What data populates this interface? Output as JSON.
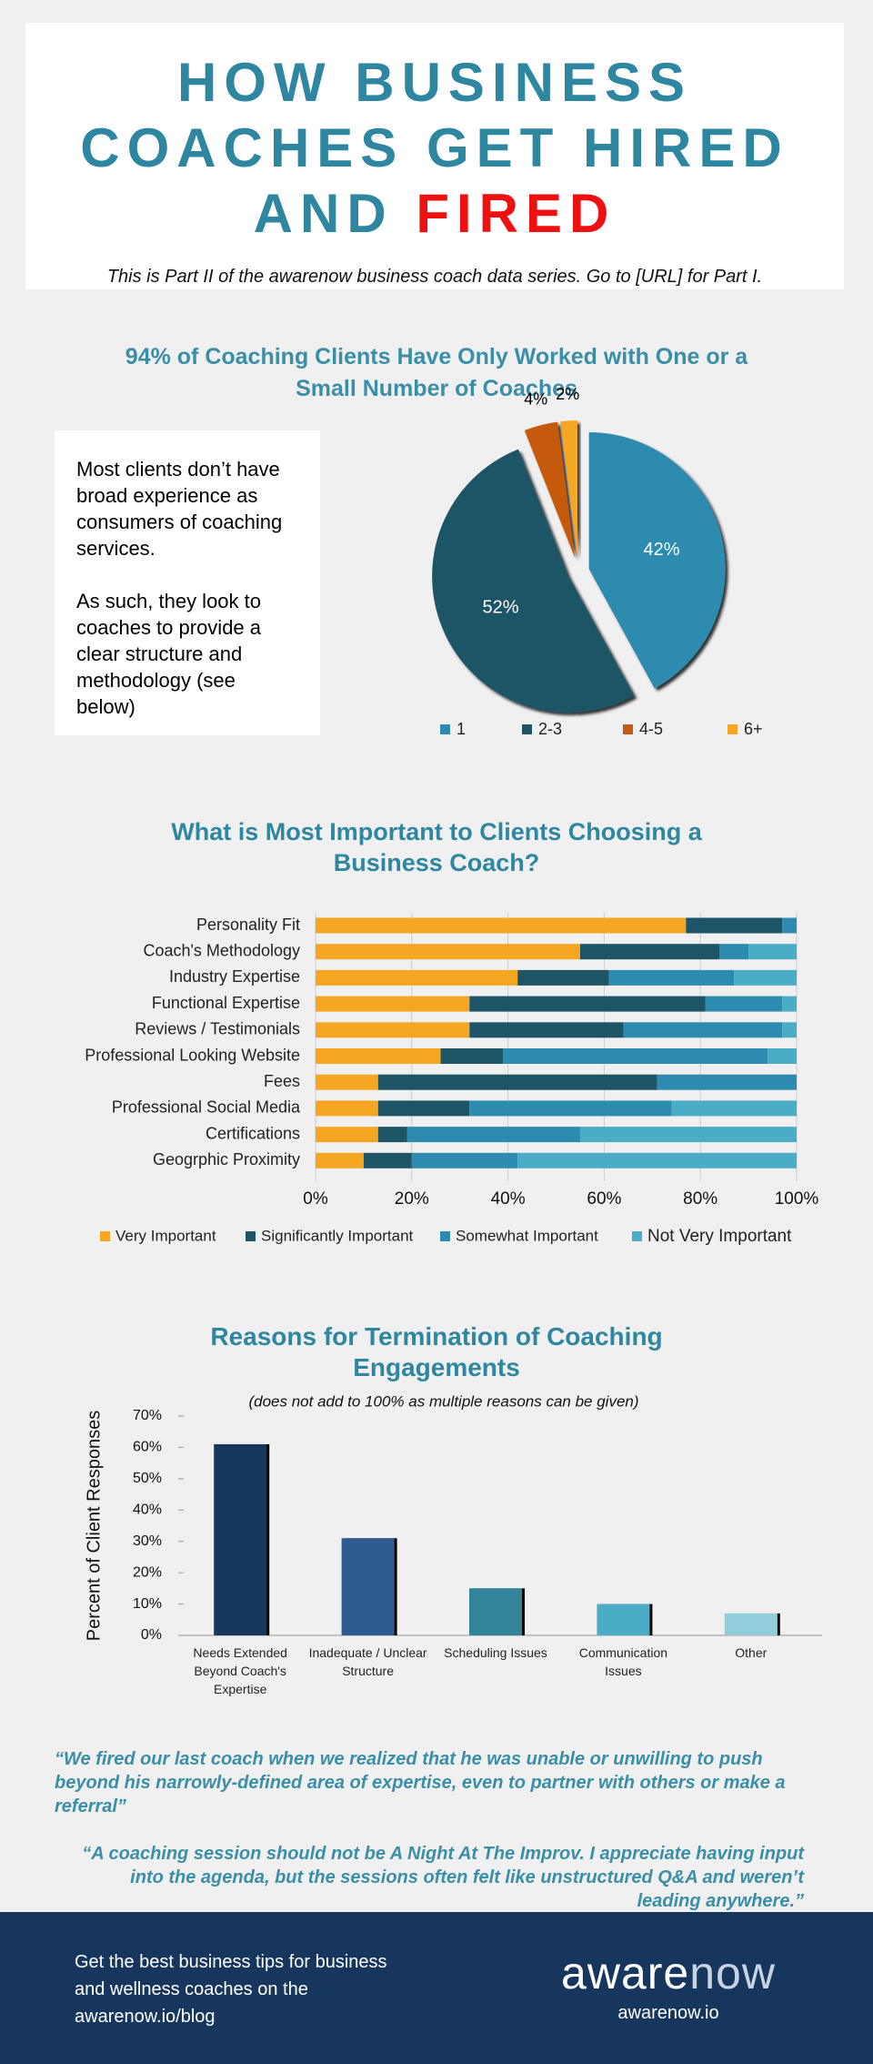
{
  "header": {
    "title_lines": [
      "HOW BUSINESS",
      "COACHES GET HIRED",
      "AND"
    ],
    "title_accent": "FIRED",
    "subtitle": "This is Part II of the awarenow business coach data series.  Go to [URL] for Part I."
  },
  "side_note": {
    "paragraphs": [
      "Most clients don’t have broad experience as consumers of coaching services.",
      "As such, they look to coaches to provide a clear structure and methodology (see below)"
    ]
  },
  "chart_data": [
    {
      "type": "pie",
      "title": "94% of Coaching Clients Have Only Worked with One or a Small Number of Coaches",
      "categories": [
        "1",
        "2-3",
        "4-5",
        "6+"
      ],
      "values": [
        42,
        52,
        4,
        2
      ],
      "value_labels": [
        "42%",
        "52%",
        "4%",
        "2%"
      ],
      "colors": [
        "#2e8bb0",
        "#1d5566",
        "#c55a11",
        "#f5a623"
      ]
    },
    {
      "type": "stacked-barh",
      "title": "What is Most Important to Clients Choosing a Business Coach?",
      "categories": [
        "Personality Fit",
        "Coach's Methodology",
        "Industry Expertise",
        "Functional Expertise",
        "Reviews / Testimonials",
        "Professional Looking Website",
        "Fees",
        "Professional Social Media",
        "Certifications",
        "Geogrphic Proximity"
      ],
      "series": [
        {
          "name": "Very Important",
          "color": "#f5a623",
          "values": [
            77,
            55,
            42,
            32,
            32,
            26,
            13,
            13,
            13,
            10
          ]
        },
        {
          "name": "Significantly Important",
          "color": "#1d5566",
          "values": [
            20,
            29,
            19,
            49,
            32,
            13,
            58,
            19,
            6,
            10
          ]
        },
        {
          "name": "Somewhat Important",
          "color": "#2e8bb0",
          "values": [
            3,
            6,
            26,
            16,
            33,
            55,
            29,
            42,
            36,
            22
          ]
        },
        {
          "name": "Not Very Important",
          "color": "#4bacc6",
          "values": [
            0,
            10,
            13,
            3,
            3,
            6,
            0,
            26,
            45,
            58
          ]
        }
      ],
      "xlim": [
        0,
        100
      ],
      "xticks": [
        {
          "value": 0,
          "label": "0%"
        },
        {
          "value": 20,
          "label": "20%"
        },
        {
          "value": 40,
          "label": "40%"
        },
        {
          "value": 60,
          "label": "60%"
        },
        {
          "value": 80,
          "label": "80%"
        },
        {
          "value": 100,
          "label": "100%"
        }
      ],
      "grid": true
    },
    {
      "type": "bar",
      "title": "Reasons for Termination of Coaching Engagements",
      "subtitle": "(does not add to 100% as multiple reasons can be given)",
      "y_label": "Percent of Client Responses",
      "categories": [
        "Needs Extended Beyond Coach's Expertise",
        "Inadequate / Unclear Structure",
        "Scheduling Issues",
        "Communication Issues",
        "Other"
      ],
      "values": [
        61,
        31,
        15,
        10,
        7
      ],
      "colors": [
        "#17375e",
        "#2e5c91",
        "#31849b",
        "#4bacc6",
        "#92cddc"
      ],
      "ylim": [
        0,
        70
      ],
      "yticks": [
        {
          "value": 0,
          "label": "0%"
        },
        {
          "value": 10,
          "label": "10%"
        },
        {
          "value": 20,
          "label": "20%"
        },
        {
          "value": 30,
          "label": "30%"
        },
        {
          "value": 40,
          "label": "40%"
        },
        {
          "value": 50,
          "label": "50%"
        },
        {
          "value": 60,
          "label": "60%"
        },
        {
          "value": 70,
          "label": "70%"
        }
      ]
    }
  ],
  "quotes": [
    "“We fired our last coach when we realized that he was unable or unwilling to push beyond his narrowly-defined area of expertise, even to partner with others or make a referral”",
    "“A coaching session should not be A Night At The Improv. I appreciate having input into the agenda, but the sessions often felt like unstructured Q&A and weren’t leading anywhere.”"
  ],
  "footer": {
    "text": "Get the best business tips for business and wellness coaches on the awarenow.io/blog",
    "logo_parts": [
      "aware",
      "now"
    ],
    "url": "awarenow.io"
  }
}
